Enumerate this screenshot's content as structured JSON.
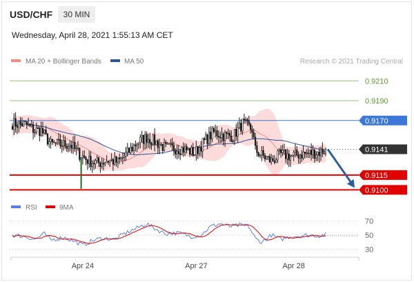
{
  "header": {
    "symbol": "USD/CHF",
    "timeframe": "30 MIN",
    "datetime": "Wednesday, April 28, 2021 1:55:13 AM CET"
  },
  "legend": {
    "main": [
      {
        "label": "MA 20 + Bollinger Bands",
        "color": "#f28b82"
      },
      {
        "label": "MA 50",
        "color": "#2f5597"
      }
    ],
    "rsi": [
      {
        "label": "RSI",
        "color": "#5b7fde"
      },
      {
        "label": "9MA",
        "color": "#e00000"
      }
    ]
  },
  "credit": "Research © 2021 Trading Central",
  "colors": {
    "bullish": "#1a1a1a",
    "bearish": "#1a1a1a",
    "band_fill": "#fbd5d5",
    "ma20": "#f28b82",
    "ma50": "#2f5597",
    "support": "#e00000",
    "resistance_green": "#92c47d",
    "resistance_blue": "#3c78d8",
    "arrow": "#2e5c9e",
    "last_price": "#333333"
  },
  "chart_data": [
    {
      "type": "candlestick",
      "title": "USD/CHF",
      "x_tick_labels": [
        "Apr 24",
        "Apr 27",
        "Apr 28"
      ],
      "ylim": [
        0.9094,
        0.9222
      ],
      "levels": [
        {
          "value": 0.921,
          "label": "0.9210",
          "kind": "resistance",
          "color": "#92c47d"
        },
        {
          "value": 0.919,
          "label": "0.9190",
          "kind": "resistance",
          "color": "#92c47d"
        },
        {
          "value": 0.917,
          "label": "0.9170",
          "kind": "pivot",
          "color": "#3c78d8"
        },
        {
          "value": 0.9141,
          "label": "0.9141",
          "kind": "last_price",
          "color": "#333333"
        },
        {
          "value": 0.9115,
          "label": "0.9115",
          "kind": "support",
          "color": "#e00000"
        },
        {
          "value": 0.91,
          "label": "0.9100",
          "kind": "support",
          "color": "#e00000"
        }
      ],
      "path_keypoints": [
        [
          0,
          0.9167
        ],
        [
          8,
          0.9166
        ],
        [
          14,
          0.916
        ],
        [
          18,
          0.916
        ],
        [
          24,
          0.9146
        ],
        [
          30,
          0.9146
        ],
        [
          36,
          0.9146
        ],
        [
          42,
          0.9136
        ],
        [
          48,
          0.9129
        ],
        [
          54,
          0.9127
        ],
        [
          60,
          0.913
        ],
        [
          66,
          0.9128
        ],
        [
          72,
          0.9137
        ],
        [
          78,
          0.9148
        ],
        [
          84,
          0.9153
        ],
        [
          90,
          0.9148
        ],
        [
          96,
          0.9142
        ],
        [
          102,
          0.9142
        ],
        [
          108,
          0.9141
        ],
        [
          114,
          0.9137
        ],
        [
          120,
          0.9149
        ],
        [
          126,
          0.9158
        ],
        [
          132,
          0.9155
        ],
        [
          138,
          0.9154
        ],
        [
          144,
          0.9167
        ],
        [
          150,
          0.9161
        ],
        [
          152,
          0.914
        ],
        [
          156,
          0.9135
        ],
        [
          162,
          0.9129
        ],
        [
          168,
          0.9136
        ],
        [
          174,
          0.9134
        ],
        [
          180,
          0.9136
        ],
        [
          186,
          0.9137
        ],
        [
          192,
          0.9138
        ],
        [
          196,
          0.9141
        ]
      ],
      "spikes": [
        {
          "at": 43,
          "low": 0.9101,
          "high": 0.9133
        },
        {
          "at": 144,
          "high": 0.9171
        }
      ],
      "forecast": {
        "from": 0.9141,
        "to": 0.91
      }
    },
    {
      "type": "line",
      "title": "RSI",
      "series": [
        {
          "name": "RSI"
        },
        {
          "name": "9MA"
        }
      ],
      "ylim": [
        22,
        78
      ],
      "y_ticks": [
        70,
        50,
        30
      ],
      "rsi_keypoints": [
        [
          0,
          50
        ],
        [
          8,
          48
        ],
        [
          14,
          44
        ],
        [
          20,
          52
        ],
        [
          24,
          43
        ],
        [
          32,
          47
        ],
        [
          38,
          42
        ],
        [
          44,
          36
        ],
        [
          50,
          42
        ],
        [
          56,
          46
        ],
        [
          64,
          44
        ],
        [
          70,
          52
        ],
        [
          76,
          58
        ],
        [
          84,
          66
        ],
        [
          90,
          58
        ],
        [
          96,
          52
        ],
        [
          104,
          53
        ],
        [
          112,
          48
        ],
        [
          118,
          50
        ],
        [
          124,
          62
        ],
        [
          130,
          66
        ],
        [
          136,
          62
        ],
        [
          142,
          64
        ],
        [
          148,
          62
        ],
        [
          152,
          45
        ],
        [
          156,
          40
        ],
        [
          162,
          50
        ],
        [
          168,
          44
        ],
        [
          174,
          48
        ],
        [
          180,
          49
        ],
        [
          186,
          50
        ],
        [
          192,
          49
        ],
        [
          196,
          51
        ]
      ]
    }
  ]
}
